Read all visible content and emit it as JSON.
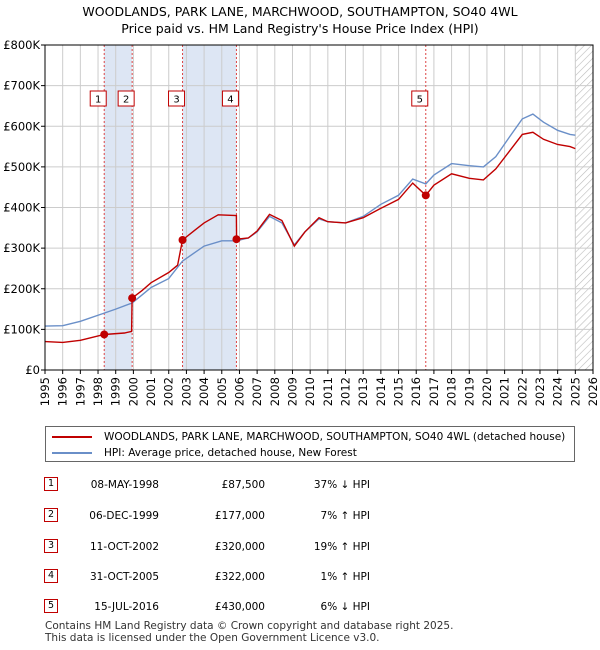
{
  "title_line1": "WOODLANDS, PARK LANE, MARCHWOOD, SOUTHAMPTON, SO40 4WL",
  "title_line2": "Price paid vs. HM Land Registry's House Price Index (HPI)",
  "colors": {
    "property": "#c00000",
    "hpi": "#6a8fc8",
    "shade": "#dde6f4",
    "grid": "#cccccc"
  },
  "chart_data": {
    "type": "line",
    "title": "Price paid vs. HM Land Registry's House Price Index (HPI)",
    "xlabel": "",
    "ylabel": "",
    "xlim": [
      1995,
      2026
    ],
    "ylim": [
      0,
      800000
    ],
    "x_ticks": [
      "1995",
      "1996",
      "1997",
      "1998",
      "1999",
      "2000",
      "2001",
      "2002",
      "2003",
      "2004",
      "2005",
      "2006",
      "2007",
      "2008",
      "2009",
      "2010",
      "2011",
      "2012",
      "2013",
      "2014",
      "2015",
      "2016",
      "2017",
      "2018",
      "2019",
      "2020",
      "2021",
      "2022",
      "2023",
      "2024",
      "2025",
      "2026"
    ],
    "y_ticks": [
      {
        "value": 0,
        "label": "£0"
      },
      {
        "value": 100000,
        "label": "£100K"
      },
      {
        "value": 200000,
        "label": "£200K"
      },
      {
        "value": 300000,
        "label": "£300K"
      },
      {
        "value": 400000,
        "label": "£400K"
      },
      {
        "value": 500000,
        "label": "£500K"
      },
      {
        "value": 600000,
        "label": "£600K"
      },
      {
        "value": 700000,
        "label": "£700K"
      },
      {
        "value": 800000,
        "label": "£800K"
      }
    ],
    "shaded_periods": [
      [
        1998.35,
        1999.93
      ],
      [
        2002.78,
        2005.83
      ]
    ],
    "hatch_from": 2025.0,
    "series": [
      {
        "name": "WOODLANDS, PARK LANE, MARCHWOOD, SOUTHAMPTON, SO40 4WL (detached house)",
        "color": "#c00000",
        "points": [
          [
            1995,
            70000
          ],
          [
            1996,
            68000
          ],
          [
            1997,
            73000
          ],
          [
            1998.35,
            87500
          ],
          [
            1999.5,
            91000
          ],
          [
            1999.9,
            95000
          ],
          [
            1999.93,
            177000
          ],
          [
            2000.5,
            196000
          ],
          [
            2001,
            215000
          ],
          [
            2002,
            240000
          ],
          [
            2002.5,
            258000
          ],
          [
            2002.78,
            320000
          ],
          [
            2003.5,
            345000
          ],
          [
            2004,
            362000
          ],
          [
            2004.8,
            382000
          ],
          [
            2005.83,
            380000
          ],
          [
            2005.84,
            322000
          ],
          [
            2006.5,
            325000
          ],
          [
            2007,
            342000
          ],
          [
            2007.7,
            383000
          ],
          [
            2008.4,
            368000
          ],
          [
            2009.1,
            305000
          ],
          [
            2009.7,
            340000
          ],
          [
            2010.5,
            375000
          ],
          [
            2011,
            365000
          ],
          [
            2012,
            362000
          ],
          [
            2013,
            375000
          ],
          [
            2014,
            398000
          ],
          [
            2015,
            420000
          ],
          [
            2015.8,
            460000
          ],
          [
            2016.54,
            430000
          ],
          [
            2017,
            455000
          ],
          [
            2018,
            483000
          ],
          [
            2019,
            472000
          ],
          [
            2019.8,
            468000
          ],
          [
            2020.5,
            495000
          ],
          [
            2021.3,
            540000
          ],
          [
            2022,
            580000
          ],
          [
            2022.6,
            585000
          ],
          [
            2023.2,
            568000
          ],
          [
            2024,
            555000
          ],
          [
            2024.7,
            550000
          ],
          [
            2025,
            545000
          ]
        ]
      },
      {
        "name": "HPI: Average price, detached house, New Forest",
        "color": "#6a8fc8",
        "points": [
          [
            1995,
            108000
          ],
          [
            1996,
            109000
          ],
          [
            1997,
            120000
          ],
          [
            1998.35,
            140000
          ],
          [
            1999,
            150000
          ],
          [
            1999.93,
            165000
          ],
          [
            2000.5,
            185000
          ],
          [
            2001,
            203000
          ],
          [
            2002,
            225000
          ],
          [
            2002.78,
            268000
          ],
          [
            2003.5,
            290000
          ],
          [
            2004,
            305000
          ],
          [
            2005,
            318000
          ],
          [
            2005.83,
            318000
          ],
          [
            2006.5,
            325000
          ],
          [
            2007,
            340000
          ],
          [
            2007.7,
            378000
          ],
          [
            2008.4,
            362000
          ],
          [
            2009.1,
            308000
          ],
          [
            2009.7,
            340000
          ],
          [
            2010.5,
            372000
          ],
          [
            2011,
            365000
          ],
          [
            2012,
            362000
          ],
          [
            2013,
            378000
          ],
          [
            2014,
            408000
          ],
          [
            2015,
            430000
          ],
          [
            2015.8,
            470000
          ],
          [
            2016.54,
            458000
          ],
          [
            2017,
            480000
          ],
          [
            2018,
            508000
          ],
          [
            2019,
            503000
          ],
          [
            2019.8,
            500000
          ],
          [
            2020.5,
            525000
          ],
          [
            2021.3,
            575000
          ],
          [
            2022,
            618000
          ],
          [
            2022.6,
            630000
          ],
          [
            2023.2,
            610000
          ],
          [
            2024,
            590000
          ],
          [
            2024.7,
            580000
          ],
          [
            2025,
            578000
          ]
        ]
      }
    ],
    "sale_markers": [
      {
        "label": "1",
        "x": 1998.35,
        "y": 87500
      },
      {
        "label": "2",
        "x": 1999.93,
        "y": 177000
      },
      {
        "label": "3",
        "x": 2002.78,
        "y": 320000
      },
      {
        "label": "4",
        "x": 2005.83,
        "y": 322000
      },
      {
        "label": "5",
        "x": 2016.54,
        "y": 430000
      }
    ]
  },
  "legend": {
    "property_label": "WOODLANDS, PARK LANE, MARCHWOOD, SOUTHAMPTON, SO40 4WL (detached house)",
    "hpi_label": "HPI: Average price, detached house, New Forest"
  },
  "sales": [
    {
      "num": "1",
      "date": "08-MAY-1998",
      "price": "£87,500",
      "hpi": "37% ↓ HPI"
    },
    {
      "num": "2",
      "date": "06-DEC-1999",
      "price": "£177,000",
      "hpi": "7% ↑ HPI"
    },
    {
      "num": "3",
      "date": "11-OCT-2002",
      "price": "£320,000",
      "hpi": "19% ↑ HPI"
    },
    {
      "num": "4",
      "date": "31-OCT-2005",
      "price": "£322,000",
      "hpi": "1% ↑ HPI"
    },
    {
      "num": "5",
      "date": "15-JUL-2016",
      "price": "£430,000",
      "hpi": "6% ↓ HPI"
    }
  ],
  "footer_line1": "Contains HM Land Registry data © Crown copyright and database right 2025.",
  "footer_line2": "This data is licensed under the Open Government Licence v3.0."
}
